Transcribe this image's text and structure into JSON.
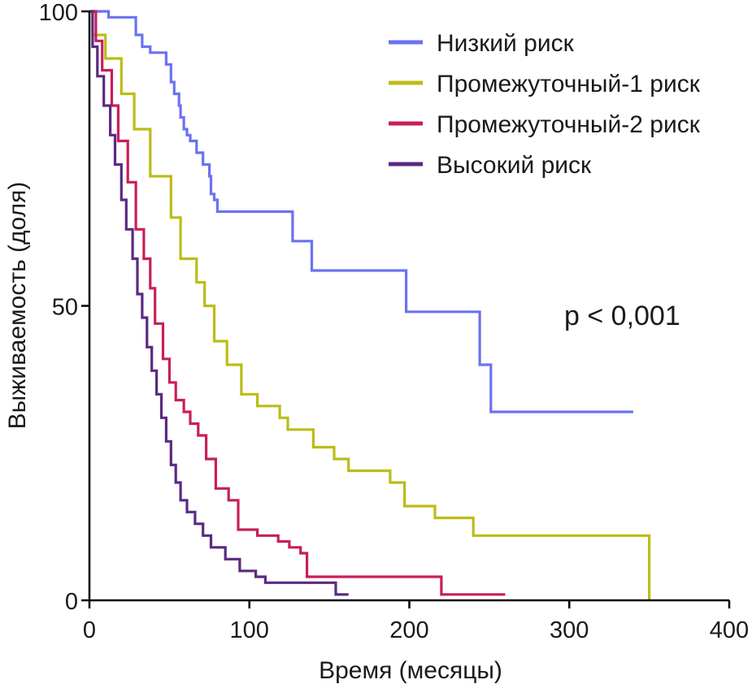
{
  "chart_data": {
    "type": "line",
    "title": "",
    "xlabel": "Время (месяцы)",
    "ylabel": "Выживаемость (доля)",
    "xlim": [
      0,
      400
    ],
    "ylim": [
      0,
      100
    ],
    "x_ticks": [
      0,
      100,
      200,
      300,
      400
    ],
    "y_ticks": [
      0,
      50,
      100
    ],
    "legend_position": "top-right",
    "annotation": "p < 0,001",
    "series": [
      {
        "name": "Низкий риск",
        "color": "#6b72f0",
        "points": [
          [
            0,
            100
          ],
          [
            12,
            100
          ],
          [
            12,
            99
          ],
          [
            29,
            99
          ],
          [
            29,
            96
          ],
          [
            33,
            96
          ],
          [
            33,
            94
          ],
          [
            38,
            94
          ],
          [
            38,
            93
          ],
          [
            48,
            93
          ],
          [
            48,
            91
          ],
          [
            51,
            91
          ],
          [
            51,
            88
          ],
          [
            53,
            88
          ],
          [
            53,
            86
          ],
          [
            56,
            86
          ],
          [
            56,
            84
          ],
          [
            57,
            84
          ],
          [
            57,
            82
          ],
          [
            59,
            82
          ],
          [
            59,
            80
          ],
          [
            61,
            80
          ],
          [
            61,
            79
          ],
          [
            63,
            79
          ],
          [
            63,
            78
          ],
          [
            67,
            78
          ],
          [
            67,
            76
          ],
          [
            71,
            76
          ],
          [
            71,
            74
          ],
          [
            75,
            74
          ],
          [
            75,
            72
          ],
          [
            76,
            72
          ],
          [
            76,
            69
          ],
          [
            78,
            69
          ],
          [
            78,
            68
          ],
          [
            80,
            68
          ],
          [
            80,
            66
          ],
          [
            127,
            66
          ],
          [
            127,
            61
          ],
          [
            139,
            61
          ],
          [
            139,
            56
          ],
          [
            198,
            56
          ],
          [
            198,
            49
          ],
          [
            244,
            49
          ],
          [
            244,
            40
          ],
          [
            251,
            40
          ],
          [
            251,
            32
          ],
          [
            340,
            32
          ]
        ]
      },
      {
        "name": "Промежуточный-1 риск",
        "color": "#bcbc17",
        "points": [
          [
            0,
            100
          ],
          [
            2,
            100
          ],
          [
            2,
            96
          ],
          [
            10,
            96
          ],
          [
            10,
            92
          ],
          [
            20,
            92
          ],
          [
            20,
            86
          ],
          [
            28,
            86
          ],
          [
            28,
            80
          ],
          [
            38,
            80
          ],
          [
            38,
            72
          ],
          [
            51,
            72
          ],
          [
            51,
            65
          ],
          [
            57,
            65
          ],
          [
            57,
            58
          ],
          [
            67,
            58
          ],
          [
            67,
            54
          ],
          [
            72,
            54
          ],
          [
            72,
            50
          ],
          [
            78,
            50
          ],
          [
            78,
            44
          ],
          [
            86,
            44
          ],
          [
            86,
            40
          ],
          [
            95,
            40
          ],
          [
            95,
            35
          ],
          [
            105,
            35
          ],
          [
            105,
            33
          ],
          [
            119,
            33
          ],
          [
            119,
            31
          ],
          [
            124,
            31
          ],
          [
            124,
            29
          ],
          [
            140,
            29
          ],
          [
            140,
            26
          ],
          [
            153,
            26
          ],
          [
            153,
            24
          ],
          [
            162,
            24
          ],
          [
            162,
            22
          ],
          [
            188,
            22
          ],
          [
            188,
            20
          ],
          [
            197,
            20
          ],
          [
            197,
            16
          ],
          [
            216,
            16
          ],
          [
            216,
            14
          ],
          [
            240,
            14
          ],
          [
            240,
            11
          ],
          [
            350,
            11
          ],
          [
            350,
            0
          ]
        ]
      },
      {
        "name": "Промежуточный-2 риск",
        "color": "#c81e5a",
        "points": [
          [
            0,
            100
          ],
          [
            4,
            100
          ],
          [
            4,
            95
          ],
          [
            8,
            95
          ],
          [
            8,
            90
          ],
          [
            14,
            90
          ],
          [
            14,
            84
          ],
          [
            18,
            84
          ],
          [
            18,
            78
          ],
          [
            24,
            78
          ],
          [
            24,
            71
          ],
          [
            29,
            71
          ],
          [
            29,
            63
          ],
          [
            34,
            63
          ],
          [
            34,
            58
          ],
          [
            38,
            58
          ],
          [
            38,
            53
          ],
          [
            41,
            53
          ],
          [
            41,
            47
          ],
          [
            46,
            47
          ],
          [
            46,
            41
          ],
          [
            50,
            41
          ],
          [
            50,
            37
          ],
          [
            54,
            37
          ],
          [
            54,
            34
          ],
          [
            59,
            34
          ],
          [
            59,
            32
          ],
          [
            63,
            32
          ],
          [
            63,
            30
          ],
          [
            68,
            30
          ],
          [
            68,
            28
          ],
          [
            73,
            28
          ],
          [
            73,
            24
          ],
          [
            79,
            24
          ],
          [
            79,
            19
          ],
          [
            87,
            19
          ],
          [
            87,
            17
          ],
          [
            93,
            17
          ],
          [
            93,
            12
          ],
          [
            105,
            12
          ],
          [
            105,
            11
          ],
          [
            118,
            11
          ],
          [
            118,
            10
          ],
          [
            125,
            10
          ],
          [
            125,
            9
          ],
          [
            132,
            9
          ],
          [
            132,
            8
          ],
          [
            136,
            8
          ],
          [
            136,
            4
          ],
          [
            220,
            4
          ],
          [
            220,
            1
          ],
          [
            260,
            1
          ]
        ]
      },
      {
        "name": "Высокий риск",
        "color": "#5a2a82",
        "points": [
          [
            0,
            100
          ],
          [
            2,
            100
          ],
          [
            2,
            94
          ],
          [
            5,
            94
          ],
          [
            5,
            89
          ],
          [
            9,
            89
          ],
          [
            9,
            84
          ],
          [
            13,
            84
          ],
          [
            13,
            79
          ],
          [
            16,
            79
          ],
          [
            16,
            74
          ],
          [
            20,
            74
          ],
          [
            20,
            68
          ],
          [
            23,
            68
          ],
          [
            23,
            63
          ],
          [
            27,
            63
          ],
          [
            27,
            58
          ],
          [
            30,
            58
          ],
          [
            30,
            52
          ],
          [
            33,
            52
          ],
          [
            33,
            48
          ],
          [
            36,
            48
          ],
          [
            36,
            43
          ],
          [
            39,
            43
          ],
          [
            39,
            39
          ],
          [
            42,
            39
          ],
          [
            42,
            35
          ],
          [
            45,
            35
          ],
          [
            45,
            31
          ],
          [
            48,
            31
          ],
          [
            48,
            27
          ],
          [
            51,
            27
          ],
          [
            51,
            23
          ],
          [
            54,
            23
          ],
          [
            54,
            20
          ],
          [
            57,
            20
          ],
          [
            57,
            17
          ],
          [
            61,
            17
          ],
          [
            61,
            15
          ],
          [
            66,
            15
          ],
          [
            66,
            13
          ],
          [
            71,
            13
          ],
          [
            71,
            11
          ],
          [
            76,
            11
          ],
          [
            76,
            9
          ],
          [
            85,
            9
          ],
          [
            85,
            7
          ],
          [
            94,
            7
          ],
          [
            94,
            5
          ],
          [
            104,
            5
          ],
          [
            104,
            4
          ],
          [
            110,
            4
          ],
          [
            110,
            3
          ],
          [
            154,
            3
          ],
          [
            154,
            1
          ],
          [
            162,
            1
          ]
        ]
      }
    ]
  }
}
